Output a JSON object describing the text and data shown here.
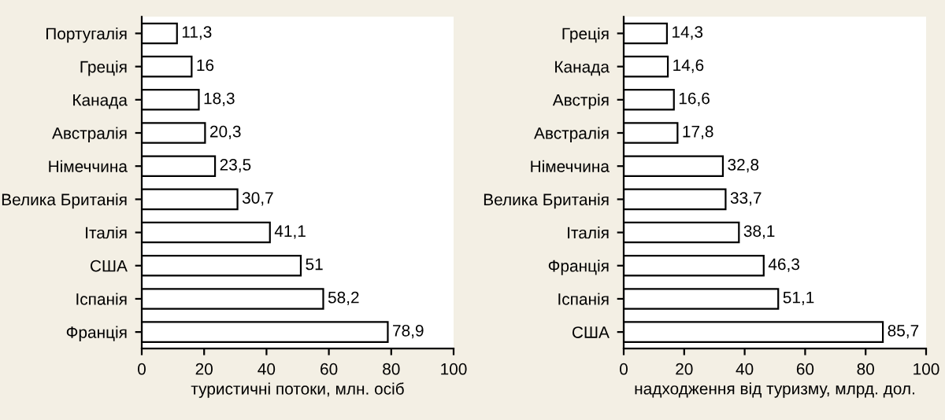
{
  "chart_data": [
    {
      "type": "bar",
      "orientation": "horizontal",
      "xlabel": "туристичні потоки, млн. осіб",
      "categories": [
        "Португалія",
        "Греція",
        "Канада",
        "Австралія",
        "Німеччина",
        "Велика Британія",
        "Італія",
        "США",
        "Іспанія",
        "Франція"
      ],
      "values": [
        11.3,
        16,
        18.3,
        20.3,
        23.5,
        30.7,
        41.1,
        51,
        58.2,
        78.9
      ],
      "value_labels": [
        "11,3",
        "16",
        "18,3",
        "20,3",
        "23,5",
        "30,7",
        "41,1",
        "51",
        "58,2",
        "78,9"
      ],
      "color": "#ffffff",
      "xlim": [
        0,
        100
      ],
      "xticks": [
        0,
        20,
        40,
        60,
        80,
        100
      ],
      "grid": false
    },
    {
      "type": "bar",
      "orientation": "horizontal",
      "xlabel": "надходження від туризму, млрд. дол.",
      "categories": [
        "Греція",
        "Канада",
        "Австрія",
        "Австралія",
        "Німеччина",
        "Велика Британія",
        "Італія",
        "Франція",
        "Іспанія",
        "США"
      ],
      "values": [
        14.3,
        14.6,
        16.6,
        17.8,
        32.8,
        33.7,
        38.1,
        46.3,
        51.1,
        85.7
      ],
      "value_labels": [
        "14,3",
        "14,6",
        "16,6",
        "17,8",
        "32,8",
        "33,7",
        "38,1",
        "46,3",
        "51,1",
        "85,7"
      ],
      "color": "#ffffff",
      "xlim": [
        0,
        100
      ],
      "xticks": [
        0,
        20,
        40,
        60,
        80,
        100
      ],
      "grid": false
    }
  ]
}
